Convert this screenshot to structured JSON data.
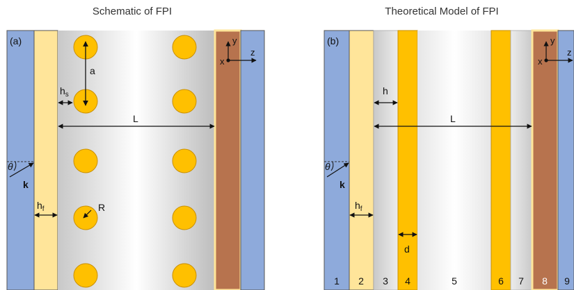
{
  "panel_a": {
    "title": "Schematic of FPI",
    "label": "(a)",
    "a": "a",
    "hs": "h",
    "hs_sub": "s",
    "L": "L",
    "theta": "θ",
    "k": "k",
    "hf": "h",
    "hf_sub": "f",
    "R": "R",
    "x": "x",
    "y": "y",
    "z": "z"
  },
  "panel_b": {
    "title": "Theoretical Model of FPI",
    "label": "(b)",
    "h": "h",
    "L": "L",
    "theta": "θ",
    "k": "k",
    "hf": "h",
    "hf_sub": "f",
    "d": "d",
    "x": "x",
    "y": "y",
    "z": "z",
    "layers": [
      "1",
      "2",
      "3",
      "4",
      "5",
      "6",
      "7",
      "8",
      "9"
    ]
  },
  "colors": {
    "blue": "#8eaadb",
    "pale_yellow": "#ffe59a",
    "gold": "#ffc000",
    "brown": "#b7734e",
    "outline": "#555555"
  }
}
